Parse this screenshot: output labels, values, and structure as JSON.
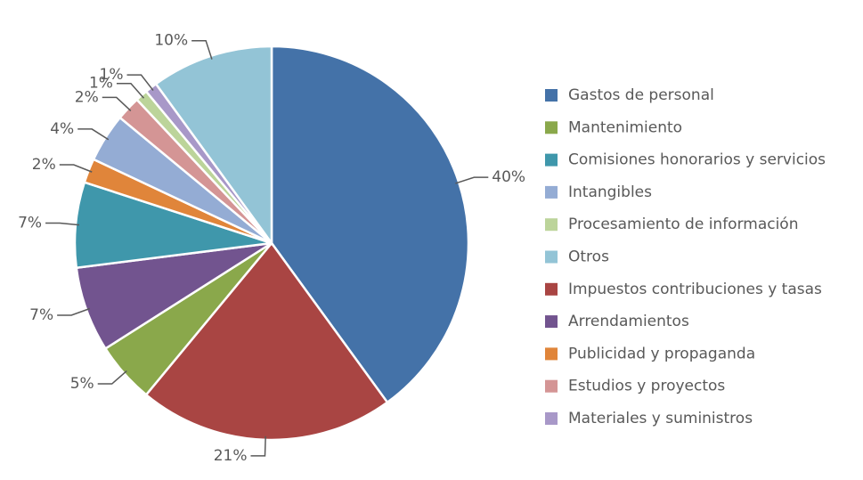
{
  "chart_data": {
    "type": "pie",
    "categories": [
      "Gastos de personal",
      "Mantenimiento",
      "Comisiones honorarios y servicios",
      "Intangibles",
      "Procesamiento de información",
      "Otros",
      "Impuestos contribuciones y tasas",
      "Arrendamientos",
      "Publicidad y propaganda",
      "Estudios y proyectos",
      "Materiales y suministros"
    ],
    "values": [
      40,
      5,
      7,
      4,
      1,
      10,
      21,
      7,
      2,
      2,
      1
    ],
    "value_labels": [
      "40%",
      "5%",
      "7%",
      "4%",
      "1%",
      "10%",
      "21%",
      "7%",
      "2%",
      "2%",
      "1%"
    ],
    "colors": [
      "#4472a8",
      "#8aa84b",
      "#3f97ab",
      "#94acd4",
      "#bcd49a",
      "#93c4d6",
      "#a94543",
      "#72548f",
      "#e0853a",
      "#d49595",
      "#a898c8"
    ],
    "legend": "right"
  }
}
